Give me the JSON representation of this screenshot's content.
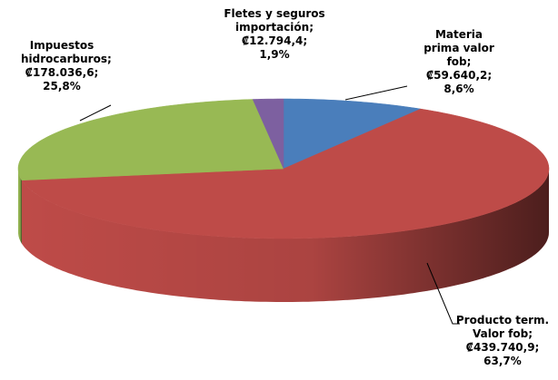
{
  "chart_data": {
    "type": "pie",
    "categories": [
      "Materia prima valor fob;",
      "Producto term. Valor fob;",
      "Impuestos hidrocarburos;",
      "Fletes y seguros importación;"
    ],
    "values": [
      59640.2,
      439740.9,
      178036.6,
      12794.4
    ],
    "value_labels": [
      "₡59.640,2;",
      "₡439.740,9;",
      "₡178.036,6;",
      "₡12.794,4;"
    ],
    "percents": [
      8.6,
      63.7,
      25.8,
      1.9
    ],
    "percent_labels": [
      "8,6%",
      "63,7%",
      "25,8%",
      "1,9%"
    ],
    "colors": [
      "#4a7ebb",
      "#be4b48",
      "#98b954",
      "#7d60a0"
    ],
    "three_d": true
  }
}
